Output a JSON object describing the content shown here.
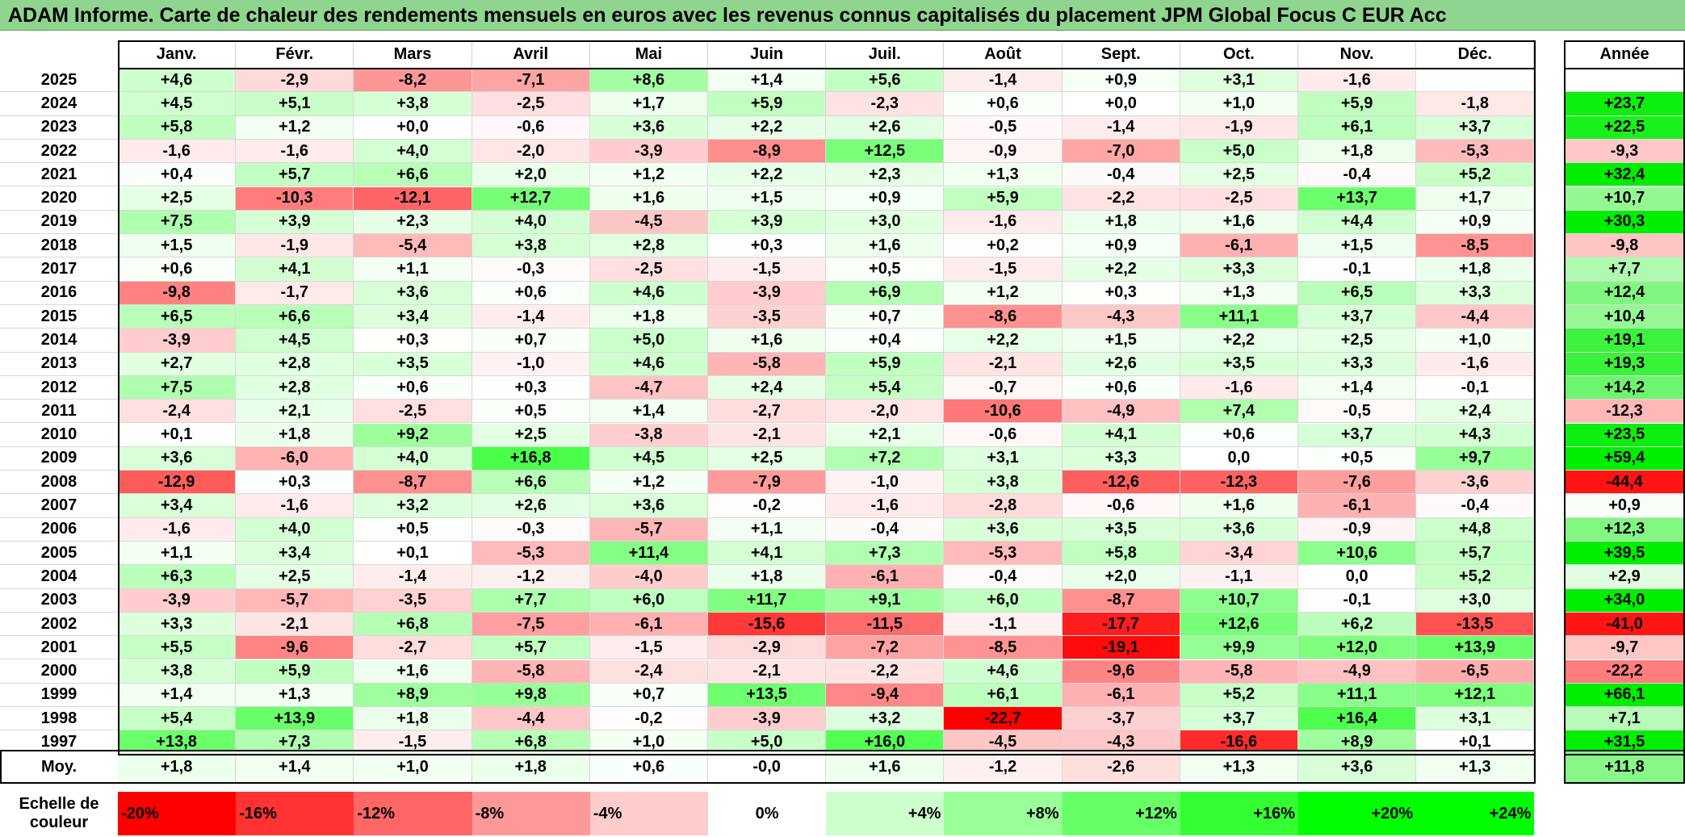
{
  "title": "ADAM Informe. Carte de chaleur des rendements mensuels en euros avec les revenus connus capitalisés du placement JPM Global Focus C EUR Acc",
  "chart_data": {
    "type": "heatmap",
    "months": [
      "Janv.",
      "Févr.",
      "Mars",
      "Avril",
      "Mai",
      "Juin",
      "Juil.",
      "Août",
      "Sept.",
      "Oct.",
      "Nov.",
      "Déc."
    ],
    "annual_header": "Année",
    "average_label": "Moy.",
    "rows": [
      {
        "year": "2025",
        "values": [
          "+4,6",
          "-2,9",
          "-8,2",
          "-7,1",
          "+8,6",
          "+1,4",
          "+5,6",
          "-1,4",
          "+0,9",
          "+3,1",
          "-1,6",
          ""
        ],
        "annual": ""
      },
      {
        "year": "2024",
        "values": [
          "+4,5",
          "+5,1",
          "+3,8",
          "-2,5",
          "+1,7",
          "+5,9",
          "-2,3",
          "+0,6",
          "+0,0",
          "+1,0",
          "+5,9",
          "-1,8"
        ],
        "annual": "+23,7"
      },
      {
        "year": "2023",
        "values": [
          "+5,8",
          "+1,2",
          "+0,0",
          "-0,6",
          "+3,6",
          "+2,2",
          "+2,6",
          "-0,5",
          "-1,4",
          "-1,9",
          "+6,1",
          "+3,7"
        ],
        "annual": "+22,5"
      },
      {
        "year": "2022",
        "values": [
          "-1,6",
          "-1,6",
          "+4,0",
          "-2,0",
          "-3,9",
          "-8,9",
          "+12,5",
          "-0,9",
          "-7,0",
          "+5,0",
          "+1,8",
          "-5,3"
        ],
        "annual": "-9,3"
      },
      {
        "year": "2021",
        "values": [
          "+0,4",
          "+5,7",
          "+6,6",
          "+2,0",
          "+1,2",
          "+2,2",
          "+2,3",
          "+1,3",
          "-0,4",
          "+2,5",
          "-0,4",
          "+5,2"
        ],
        "annual": "+32,4"
      },
      {
        "year": "2020",
        "values": [
          "+2,5",
          "-10,3",
          "-12,1",
          "+12,7",
          "+1,6",
          "+1,5",
          "+0,9",
          "+5,9",
          "-2,2",
          "-2,5",
          "+13,7",
          "+1,7"
        ],
        "annual": "+10,7"
      },
      {
        "year": "2019",
        "values": [
          "+7,5",
          "+3,9",
          "+2,3",
          "+4,0",
          "-4,5",
          "+3,9",
          "+3,0",
          "-1,6",
          "+1,8",
          "+1,6",
          "+4,4",
          "+0,9"
        ],
        "annual": "+30,3"
      },
      {
        "year": "2018",
        "values": [
          "+1,5",
          "-1,9",
          "-5,4",
          "+3,8",
          "+2,8",
          "+0,3",
          "+1,6",
          "+0,2",
          "+0,9",
          "-6,1",
          "+1,5",
          "-8,5"
        ],
        "annual": "-9,8"
      },
      {
        "year": "2017",
        "values": [
          "+0,6",
          "+4,1",
          "+1,1",
          "-0,3",
          "-2,5",
          "-1,5",
          "+0,5",
          "-1,5",
          "+2,2",
          "+3,3",
          "-0,1",
          "+1,8"
        ],
        "annual": "+7,7"
      },
      {
        "year": "2016",
        "values": [
          "-9,8",
          "-1,7",
          "+3,6",
          "+0,6",
          "+4,6",
          "-3,9",
          "+6,9",
          "+1,2",
          "+0,3",
          "+1,3",
          "+6,5",
          "+3,3"
        ],
        "annual": "+12,4"
      },
      {
        "year": "2015",
        "values": [
          "+6,5",
          "+6,6",
          "+3,4",
          "-1,4",
          "+1,8",
          "-3,5",
          "+0,7",
          "-8,6",
          "-4,3",
          "+11,1",
          "+3,7",
          "-4,4"
        ],
        "annual": "+10,4"
      },
      {
        "year": "2014",
        "values": [
          "-3,9",
          "+4,5",
          "+0,3",
          "+0,7",
          "+5,0",
          "+1,6",
          "+0,4",
          "+2,2",
          "+1,5",
          "+2,2",
          "+2,5",
          "+1,0"
        ],
        "annual": "+19,1"
      },
      {
        "year": "2013",
        "values": [
          "+2,7",
          "+2,8",
          "+3,5",
          "-1,0",
          "+4,6",
          "-5,8",
          "+5,9",
          "-2,1",
          "+2,6",
          "+3,5",
          "+3,3",
          "-1,6"
        ],
        "annual": "+19,3"
      },
      {
        "year": "2012",
        "values": [
          "+7,5",
          "+2,8",
          "+0,6",
          "+0,3",
          "-4,7",
          "+2,4",
          "+5,4",
          "-0,7",
          "+0,6",
          "-1,6",
          "+1,4",
          "-0,1"
        ],
        "annual": "+14,2"
      },
      {
        "year": "2011",
        "values": [
          "-2,4",
          "+2,1",
          "-2,5",
          "+0,5",
          "+1,4",
          "-2,7",
          "-2,0",
          "-10,6",
          "-4,9",
          "+7,4",
          "-0,5",
          "+2,4"
        ],
        "annual": "-12,3"
      },
      {
        "year": "2010",
        "values": [
          "+0,1",
          "+1,8",
          "+9,2",
          "+2,5",
          "-3,8",
          "-2,1",
          "+2,1",
          "-0,6",
          "+4,1",
          "+0,6",
          "+3,7",
          "+4,3"
        ],
        "annual": "+23,5"
      },
      {
        "year": "2009",
        "values": [
          "+3,6",
          "-6,0",
          "+4,0",
          "+16,8",
          "+4,5",
          "+2,5",
          "+7,2",
          "+3,1",
          "+3,3",
          "0,0",
          "+0,5",
          "+9,7"
        ],
        "annual": "+59,4"
      },
      {
        "year": "2008",
        "values": [
          "-12,9",
          "+0,3",
          "-8,7",
          "+6,6",
          "+1,2",
          "-7,9",
          "-1,0",
          "+3,8",
          "-12,6",
          "-12,3",
          "-7,6",
          "-3,6"
        ],
        "annual": "-44,4"
      },
      {
        "year": "2007",
        "values": [
          "+3,4",
          "-1,6",
          "+3,2",
          "+2,6",
          "+3,6",
          "-0,2",
          "-1,6",
          "-2,8",
          "-0,6",
          "+1,6",
          "-6,1",
          "-0,4"
        ],
        "annual": "+0,9"
      },
      {
        "year": "2006",
        "values": [
          "-1,6",
          "+4,0",
          "+0,5",
          "-0,3",
          "-5,7",
          "+1,1",
          "-0,4",
          "+3,6",
          "+3,5",
          "+3,6",
          "-0,9",
          "+4,8"
        ],
        "annual": "+12,3"
      },
      {
        "year": "2005",
        "values": [
          "+1,1",
          "+3,4",
          "+0,1",
          "-5,3",
          "+11,4",
          "+4,1",
          "+7,3",
          "-5,3",
          "+5,8",
          "-3,4",
          "+10,6",
          "+5,7"
        ],
        "annual": "+39,5"
      },
      {
        "year": "2004",
        "values": [
          "+6,3",
          "+2,5",
          "-1,4",
          "-1,2",
          "-4,0",
          "+1,8",
          "-6,1",
          "-0,4",
          "+2,0",
          "-1,1",
          "0,0",
          "+5,2"
        ],
        "annual": "+2,9"
      },
      {
        "year": "2003",
        "values": [
          "-3,9",
          "-5,7",
          "-3,5",
          "+7,7",
          "+6,0",
          "+11,7",
          "+9,1",
          "+6,0",
          "-8,7",
          "+10,7",
          "-0,1",
          "+3,0"
        ],
        "annual": "+34,0"
      },
      {
        "year": "2002",
        "values": [
          "+3,3",
          "-2,1",
          "+6,8",
          "-7,5",
          "-6,1",
          "-15,6",
          "-11,5",
          "-1,1",
          "-17,7",
          "+12,6",
          "+6,2",
          "-13,5"
        ],
        "annual": "-41,0"
      },
      {
        "year": "2001",
        "values": [
          "+5,5",
          "-9,6",
          "-2,7",
          "+5,7",
          "-1,5",
          "-2,9",
          "-7,2",
          "-8,5",
          "-19,1",
          "+9,9",
          "+12,0",
          "+13,9"
        ],
        "annual": "-9,7"
      },
      {
        "year": "2000",
        "values": [
          "+3,8",
          "+5,9",
          "+1,6",
          "-5,8",
          "-2,4",
          "-2,1",
          "-2,2",
          "+4,6",
          "-9,6",
          "-5,8",
          "-4,9",
          "-6,5"
        ],
        "annual": "-22,2"
      },
      {
        "year": "1999",
        "values": [
          "+1,4",
          "+1,3",
          "+8,9",
          "+9,8",
          "+0,7",
          "+13,5",
          "-9,4",
          "+6,1",
          "-6,1",
          "+5,2",
          "+11,1",
          "+12,1"
        ],
        "annual": "+66,1"
      },
      {
        "year": "1998",
        "values": [
          "+5,4",
          "+13,9",
          "+1,8",
          "-4,4",
          "-0,2",
          "-3,9",
          "+3,2",
          "-22,7",
          "-3,7",
          "+3,7",
          "+16,4",
          "+3,1"
        ],
        "annual": "+7,1"
      },
      {
        "year": "1997",
        "values": [
          "+13,8",
          "+7,3",
          "-1,5",
          "+6,8",
          "+1,0",
          "+5,0",
          "+16,0",
          "-4,5",
          "-4,3",
          "-16,6",
          "+8,9",
          "+0,1"
        ],
        "annual": "+31,5"
      }
    ],
    "averages": {
      "values": [
        "+1,8",
        "+1,4",
        "+1,0",
        "+1,8",
        "+0,6",
        "-0,0",
        "+1,6",
        "-1,2",
        "-2,6",
        "+1,3",
        "+3,6",
        "+1,3"
      ],
      "annual": "+11,8"
    },
    "scale": {
      "label": "Echelle de couleur",
      "steps": [
        "-20%",
        "-16%",
        "-12%",
        "-8%",
        "-4%",
        "0%",
        "+4%",
        "+8%",
        "+12%",
        "+16%",
        "+20%",
        "+24%"
      ],
      "colors": [
        "#ff0000",
        "#ff3333",
        "#ff6666",
        "#ff9999",
        "#ffcccc",
        "#ffffff",
        "#ccffcc",
        "#99ff99",
        "#66ff66",
        "#33ff33",
        "#00ff00",
        "#00ff00"
      ]
    }
  }
}
